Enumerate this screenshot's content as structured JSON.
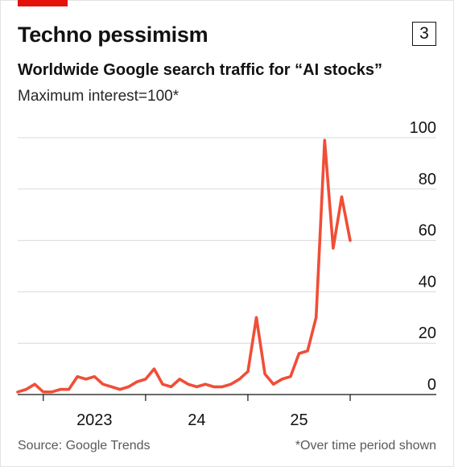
{
  "header": {
    "title": "Techno pessimism",
    "chart_number": "3",
    "subtitle": "Worldwide Google search traffic for “AI stocks”",
    "note": "Maximum interest=100*"
  },
  "footer": {
    "source": "Source: Google Trends",
    "footnote": "*Over time period shown"
  },
  "colors": {
    "line": "#f04e37",
    "brand": "#e3120b",
    "grid": "#d9d9d9",
    "axis": "#121212"
  },
  "chart_data": {
    "type": "line",
    "title": "Worldwide Google search traffic for “AI stocks”",
    "ylabel": "Maximum interest=100*",
    "ylim": [
      0,
      100
    ],
    "yticks": [
      0,
      20,
      40,
      60,
      80,
      100
    ],
    "xlim": [
      "2022-04",
      "2025-12"
    ],
    "x_tick_labels": [
      {
        "x": "2023-01",
        "label": "2023"
      },
      {
        "x": "2024-01",
        "label": "24"
      },
      {
        "x": "2025-01",
        "label": "25"
      }
    ],
    "x_tick_marks": [
      "2022-07",
      "2023-07",
      "2024-07",
      "2025-07"
    ],
    "grid": true,
    "series": [
      {
        "x": [
          "2022-04",
          "2022-05",
          "2022-06",
          "2022-07",
          "2022-08",
          "2022-09",
          "2022-10",
          "2022-11",
          "2022-12",
          "2023-01",
          "2023-02",
          "2023-03",
          "2023-04",
          "2023-05",
          "2023-06",
          "2023-07",
          "2023-08",
          "2023-09",
          "2023-10",
          "2023-11",
          "2023-12",
          "2024-01",
          "2024-02",
          "2024-03",
          "2024-04",
          "2024-05",
          "2024-06",
          "2024-07",
          "2024-08",
          "2024-09",
          "2024-10",
          "2024-11",
          "2024-12",
          "2025-01",
          "2025-02",
          "2025-03",
          "2025-04",
          "2025-05",
          "2025-06",
          "2025-07"
        ],
        "values": [
          1,
          2,
          4,
          1,
          1,
          2,
          2,
          7,
          6,
          7,
          4,
          3,
          2,
          3,
          5,
          6,
          10,
          4,
          3,
          6,
          4,
          3,
          4,
          3,
          3,
          4,
          6,
          9,
          30,
          8,
          4,
          6,
          7,
          16,
          17,
          30,
          99,
          57,
          77,
          60
        ]
      }
    ]
  }
}
